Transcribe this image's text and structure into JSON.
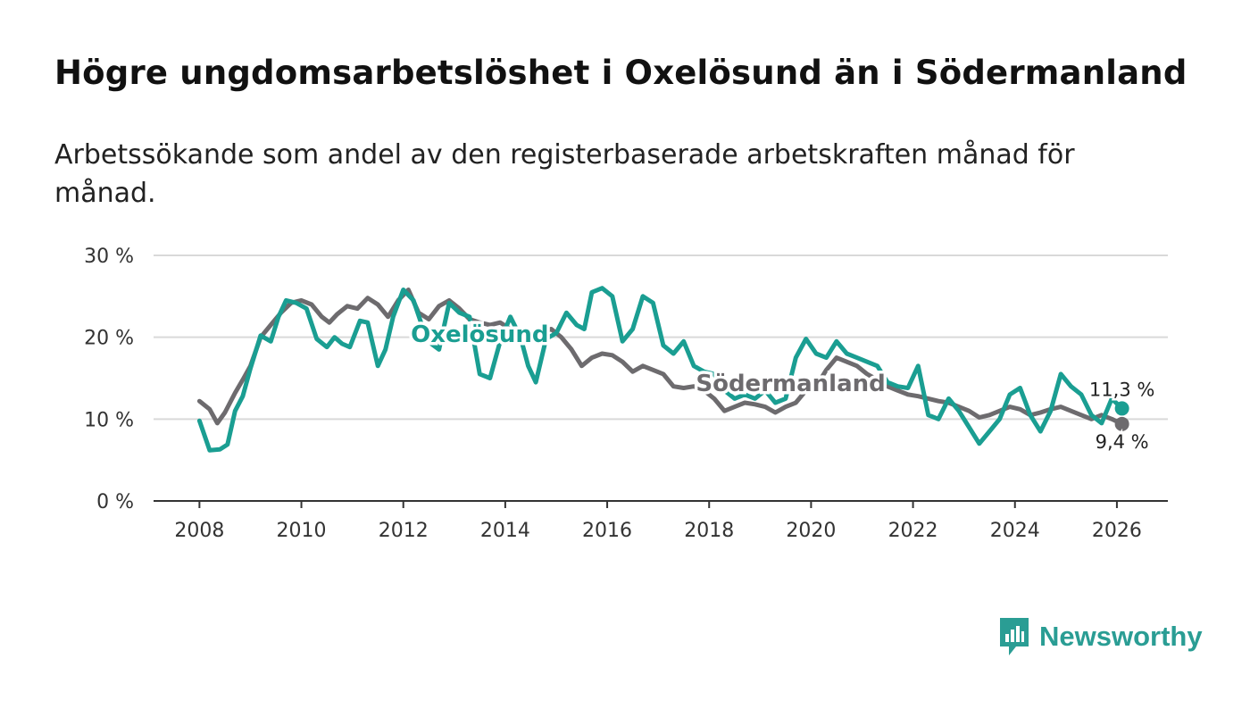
{
  "title": "Högre ungdomsarbetslöshet i Oxelösund än i Södermanland",
  "subtitle": "Arbetssökande som andel av den registerbaserade arbetskraften månad för månad.",
  "brand": {
    "name": "Newsworthy",
    "icon": "newsworthy-logo-icon",
    "color": "#2a9d94"
  },
  "colors": {
    "oxelosund": "#1a9e92",
    "sodermanland": "#6d6b6e",
    "grid": "#d9d9d9",
    "axis": "#333333"
  },
  "chart_data": {
    "type": "line",
    "title": "Högre ungdomsarbetslöshet i Oxelösund än i Södermanland",
    "xlabel": "",
    "ylabel": "",
    "xlim": [
      2007.1,
      2027.0
    ],
    "ylim": [
      0,
      30
    ],
    "y_ticks": [
      0,
      10,
      20,
      30
    ],
    "y_tick_labels": [
      "0 %",
      "10 %",
      "20 %",
      "30 %"
    ],
    "x_ticks": [
      2008,
      2010,
      2012,
      2014,
      2016,
      2018,
      2020,
      2022,
      2024,
      2026
    ],
    "x_tick_labels": [
      "2008",
      "2010",
      "2012",
      "2014",
      "2016",
      "2018",
      "2020",
      "2022",
      "2024",
      "2026"
    ],
    "grid": true,
    "series": [
      {
        "name": "Oxelösund",
        "label": "Oxelösund",
        "end_label": "11,3 %",
        "x": [
          2008.0,
          2008.2,
          2008.4,
          2008.55,
          2008.7,
          2008.85,
          2009.0,
          2009.2,
          2009.4,
          2009.55,
          2009.7,
          2009.9,
          2010.1,
          2010.3,
          2010.5,
          2010.65,
          2010.8,
          2010.95,
          2011.15,
          2011.3,
          2011.5,
          2011.65,
          2011.8,
          2012.0,
          2012.2,
          2012.4,
          2012.55,
          2012.7,
          2012.9,
          2013.1,
          2013.3,
          2013.5,
          2013.7,
          2013.9,
          2014.1,
          2014.3,
          2014.45,
          2014.6,
          2014.8,
          2015.0,
          2015.2,
          2015.4,
          2015.55,
          2015.7,
          2015.9,
          2016.1,
          2016.3,
          2016.5,
          2016.7,
          2016.9,
          2017.1,
          2017.3,
          2017.5,
          2017.7,
          2017.9,
          2018.1,
          2018.3,
          2018.5,
          2018.7,
          2018.9,
          2019.1,
          2019.3,
          2019.5,
          2019.7,
          2019.9,
          2020.1,
          2020.3,
          2020.5,
          2020.7,
          2020.9,
          2021.1,
          2021.3,
          2021.5,
          2021.7,
          2021.9,
          2022.1,
          2022.3,
          2022.5,
          2022.7,
          2022.9,
          2023.1,
          2023.3,
          2023.5,
          2023.7,
          2023.9,
          2024.1,
          2024.3,
          2024.5,
          2024.7,
          2024.9,
          2025.1,
          2025.3,
          2025.5,
          2025.7,
          2025.9,
          2026.1
        ],
        "values": [
          9.8,
          6.2,
          6.3,
          6.9,
          11.0,
          12.8,
          16.2,
          20.2,
          19.5,
          22.5,
          24.5,
          24.2,
          23.5,
          19.8,
          18.8,
          20.0,
          19.2,
          18.8,
          22.0,
          21.8,
          16.5,
          18.5,
          22.5,
          25.8,
          24.5,
          20.8,
          19.2,
          18.5,
          24.2,
          23.0,
          22.5,
          15.5,
          15.0,
          19.5,
          22.5,
          20.0,
          16.5,
          14.5,
          19.8,
          20.5,
          23.0,
          21.5,
          21.0,
          25.5,
          26.0,
          25.0,
          19.5,
          21.0,
          25.0,
          24.2,
          19.0,
          18.0,
          19.5,
          16.5,
          15.8,
          15.5,
          13.5,
          12.5,
          13.0,
          12.5,
          13.5,
          12.0,
          12.5,
          17.5,
          19.8,
          18.0,
          17.5,
          19.5,
          18.0,
          17.5,
          17.0,
          16.5,
          14.5,
          14.0,
          13.8,
          16.5,
          10.5,
          10.0,
          12.5,
          11.0,
          9.0,
          7.0,
          8.5,
          10.0,
          13.0,
          13.8,
          10.5,
          8.5,
          11.0,
          15.5,
          14.0,
          13.0,
          10.5,
          9.5,
          12.5,
          11.3
        ]
      },
      {
        "name": "Södermanland",
        "label": "Södermanland",
        "end_label": "9,4 %",
        "x": [
          2008.0,
          2008.2,
          2008.35,
          2008.5,
          2008.7,
          2008.85,
          2009.0,
          2009.2,
          2009.4,
          2009.6,
          2009.8,
          2010.0,
          2010.2,
          2010.4,
          2010.55,
          2010.7,
          2010.9,
          2011.1,
          2011.3,
          2011.5,
          2011.7,
          2011.9,
          2012.1,
          2012.3,
          2012.5,
          2012.7,
          2012.9,
          2013.1,
          2013.3,
          2013.5,
          2013.7,
          2013.9,
          2014.1,
          2014.3,
          2014.5,
          2014.7,
          2014.9,
          2015.1,
          2015.3,
          2015.5,
          2015.7,
          2015.9,
          2016.1,
          2016.3,
          2016.5,
          2016.7,
          2016.9,
          2017.1,
          2017.3,
          2017.5,
          2017.7,
          2017.9,
          2018.1,
          2018.3,
          2018.5,
          2018.7,
          2018.9,
          2019.1,
          2019.3,
          2019.5,
          2019.7,
          2019.9,
          2020.1,
          2020.3,
          2020.5,
          2020.7,
          2020.9,
          2021.1,
          2021.3,
          2021.5,
          2021.7,
          2021.9,
          2022.1,
          2022.3,
          2022.5,
          2022.7,
          2022.9,
          2023.1,
          2023.3,
          2023.5,
          2023.7,
          2023.9,
          2024.1,
          2024.3,
          2024.5,
          2024.7,
          2024.9,
          2025.1,
          2025.3,
          2025.5,
          2025.7,
          2025.9,
          2026.1
        ],
        "values": [
          12.2,
          11.2,
          9.5,
          10.8,
          13.2,
          14.8,
          16.5,
          20.0,
          21.5,
          23.0,
          24.2,
          24.5,
          24.0,
          22.5,
          21.8,
          22.8,
          23.8,
          23.5,
          24.8,
          24.0,
          22.5,
          24.5,
          25.8,
          23.0,
          22.2,
          23.8,
          24.5,
          23.5,
          22.2,
          21.8,
          21.5,
          21.8,
          21.0,
          20.2,
          20.0,
          20.5,
          21.0,
          20.0,
          18.5,
          16.5,
          17.5,
          18.0,
          17.8,
          17.0,
          15.8,
          16.5,
          16.0,
          15.5,
          14.0,
          13.8,
          14.0,
          13.5,
          12.5,
          11.0,
          11.5,
          12.0,
          11.8,
          11.5,
          10.8,
          11.5,
          12.0,
          13.5,
          14.0,
          16.0,
          17.5,
          17.0,
          16.5,
          15.5,
          14.8,
          14.0,
          13.5,
          13.0,
          12.8,
          12.5,
          12.2,
          12.0,
          11.5,
          11.0,
          10.2,
          10.5,
          11.0,
          11.5,
          11.2,
          10.5,
          10.8,
          11.2,
          11.5,
          11.0,
          10.5,
          10.0,
          10.5,
          10.0,
          9.4
        ]
      }
    ]
  }
}
